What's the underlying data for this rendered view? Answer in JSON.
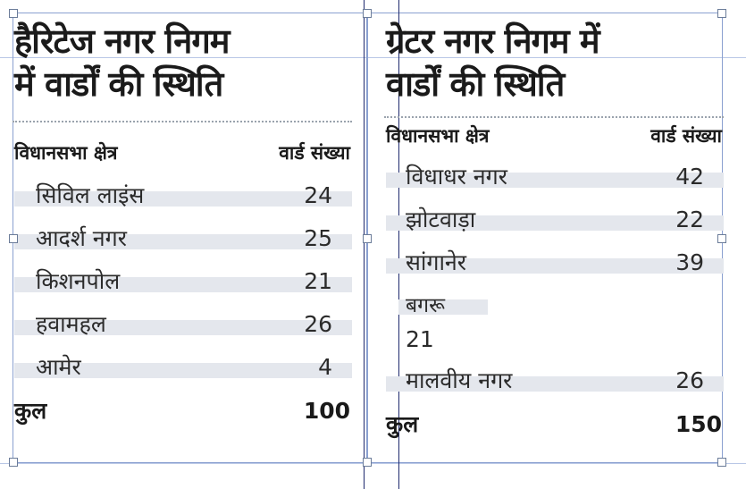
{
  "left_table": {
    "title_line1": "हैरिटेज नगर निगम",
    "title_line2": "में वार्डों की स्थिति",
    "header": {
      "col1": "विधानसभा क्षेत्र",
      "col2": "वार्ड संख्या"
    },
    "rows": [
      {
        "name": "सिविल लाइंस",
        "wards": "24"
      },
      {
        "name": "आदर्श नगर",
        "wards": "25"
      },
      {
        "name": "किशनपोल",
        "wards": "21"
      },
      {
        "name": "हवामहल",
        "wards": "26"
      },
      {
        "name": "आमेर",
        "wards": "4"
      }
    ],
    "total": {
      "label": "कुल",
      "value": "100"
    }
  },
  "right_table": {
    "title_line1": "ग्रेटर नगर निगम में",
    "title_line2": "वार्डों की स्थिति",
    "header": {
      "col1": "विधानसभा क्षेत्र",
      "col2": "वार्ड संख्या"
    },
    "rows": [
      {
        "name": "विधाधर नगर",
        "wards": "42"
      },
      {
        "name": "झोटवाड़ा",
        "wards": "22"
      },
      {
        "name": "सांगानेर",
        "wards": "39"
      },
      {
        "name": "बगरू",
        "wards": "21"
      },
      {
        "name": "मालवीय नगर",
        "wards": "26"
      }
    ],
    "total": {
      "label": "कुल",
      "value": "150"
    }
  },
  "colors": {
    "row_band": "#e4e7ed",
    "guide_dark": "#1f2a6e",
    "guide_light": "#b9c7e6",
    "dotted_rule": "#9aa3ad"
  }
}
